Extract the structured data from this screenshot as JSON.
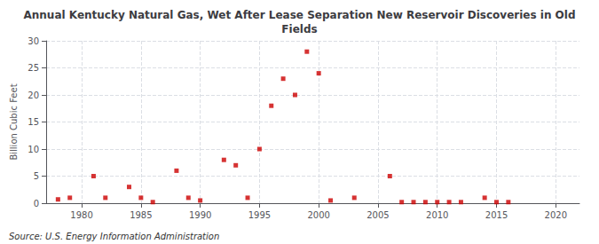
{
  "chart_data": {
    "type": "scatter",
    "title": "Annual Kentucky Natural Gas, Wet After Lease Separation New Reservoir Discoveries in Old\nFields",
    "ylabel": "Billion Cubic Feet",
    "annotations": [
      "Source: U.S. Energy Information Administration"
    ],
    "color": "#cc0000",
    "marker": "square",
    "grid": true,
    "xlim": [
      1977,
      2022
    ],
    "ylim": [
      0,
      30
    ],
    "xticks": [
      1980,
      1985,
      1990,
      1995,
      2000,
      2005,
      2010,
      2015,
      2020
    ],
    "yticks": [
      0,
      5,
      10,
      15,
      20,
      25,
      30
    ],
    "x": [
      1978,
      1979,
      1981,
      1982,
      1984,
      1985,
      1986,
      1988,
      1989,
      1990,
      1992,
      1993,
      1994,
      1995,
      1996,
      1997,
      1998,
      1999,
      2000,
      2001,
      2003,
      2006,
      2007,
      2008,
      2009,
      2010,
      2011,
      2012,
      2014,
      2015,
      2016
    ],
    "values": [
      0.7,
      1.0,
      5.0,
      1.0,
      3.0,
      1.0,
      0.2,
      6.0,
      1.0,
      0.5,
      8.0,
      7.0,
      1.0,
      10.0,
      18.0,
      23.0,
      20.0,
      28.0,
      24.0,
      0.5,
      1.0,
      5.0,
      0.2,
      0.2,
      0.2,
      0.2,
      0.2,
      0.2,
      1.0,
      0.2,
      0.2
    ]
  }
}
